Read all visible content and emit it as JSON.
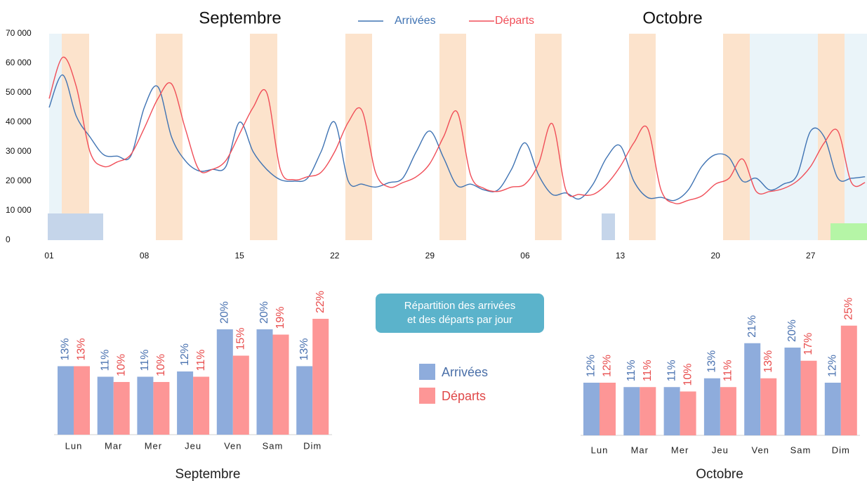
{
  "chart_data": [
    {
      "type": "line",
      "annotations": [
        "Septembre",
        "Octobre"
      ],
      "categories": [
        "01",
        null,
        null,
        null,
        null,
        null,
        null,
        "08",
        null,
        null,
        null,
        null,
        null,
        null,
        "15",
        null,
        null,
        null,
        null,
        null,
        null,
        "22",
        null,
        null,
        null,
        null,
        null,
        null,
        "29",
        null,
        null,
        null,
        null,
        null,
        null,
        "06",
        null,
        null,
        null,
        null,
        null,
        null,
        "13",
        null,
        null,
        null,
        null,
        null,
        null,
        "20",
        null,
        null,
        null,
        null,
        null,
        null,
        "27",
        null,
        null,
        null,
        null
      ],
      "series": [
        {
          "name": "Arrivées",
          "color": "#3f73b3",
          "values": [
            45000,
            56000,
            42000,
            35000,
            29000,
            28500,
            28500,
            45000,
            52000,
            35000,
            27000,
            23500,
            24000,
            25000,
            40000,
            30000,
            24000,
            20500,
            20000,
            21000,
            30000,
            40000,
            20000,
            19000,
            18000,
            19500,
            21000,
            30000,
            37000,
            28000,
            18500,
            19000,
            17000,
            17000,
            24000,
            33000,
            22000,
            15500,
            16000,
            14000,
            19000,
            28000,
            32000,
            20000,
            14500,
            14500,
            13500,
            17000,
            25000,
            29000,
            28000,
            20000,
            21000,
            17000,
            19000,
            22000,
            37000,
            35000,
            21000,
            21000,
            21500
          ]
        },
        {
          "name": "Départs",
          "color": "#f04e58",
          "values": [
            48000,
            62000,
            52000,
            30000,
            25000,
            26500,
            29000,
            38000,
            48000,
            53000,
            38000,
            24000,
            24000,
            27000,
            36000,
            45000,
            50000,
            24000,
            20500,
            21500,
            23000,
            30000,
            40000,
            44000,
            23000,
            18000,
            19500,
            21500,
            26000,
            35000,
            43500,
            22000,
            17500,
            16500,
            18000,
            19000,
            26000,
            39500,
            17000,
            15500,
            15500,
            19000,
            25000,
            33000,
            38000,
            17000,
            12500,
            13500,
            15000,
            19000,
            21000,
            27500,
            16500,
            16500,
            17500,
            20000,
            25000,
            33000,
            37000,
            19500,
            19500
          ]
        }
      ],
      "ylim": [
        0,
        70000
      ],
      "yticks": [
        0,
        {
          "value": 10000,
          "label": "10 000"
        },
        {
          "value": 20000,
          "label": "20 000"
        },
        {
          "value": 30000,
          "label": "30 000"
        },
        {
          "value": 40000,
          "label": "40 000"
        },
        {
          "value": 50000,
          "label": "50 000"
        },
        {
          "value": 60000,
          "label": "60 000"
        },
        {
          "value": 70000,
          "label": "70 000"
        }
      ],
      "grid": false,
      "legend": "top"
    },
    {
      "type": "bar",
      "title": "Septembre",
      "annotation": "Répartition des arrivées\net des départs par jour",
      "categories": [
        "Lun",
        "Mar",
        "Mer",
        "Jeu",
        "Ven",
        "Sam",
        "Dim"
      ],
      "series": [
        {
          "name": "Arrivées",
          "color": "#8eacdc",
          "values": [
            13,
            11,
            11,
            12,
            20,
            20,
            13
          ],
          "value_labels": [
            "13%",
            "11%",
            "11%",
            "12%",
            "20%",
            "20%",
            "13%"
          ]
        },
        {
          "name": "Départs",
          "color": "#fd9696",
          "values": [
            13,
            10,
            10,
            11,
            15,
            19,
            22
          ],
          "value_labels": [
            "13%",
            "10%",
            "10%",
            "11%",
            "15%",
            "19%",
            "22%"
          ]
        }
      ]
    },
    {
      "type": "bar",
      "title": "Octobre",
      "categories": [
        "Lun",
        "Mar",
        "Mer",
        "Jeu",
        "Ven",
        "Sam",
        "Dim"
      ],
      "series": [
        {
          "color": "#8eacdc",
          "values": [
            12,
            11,
            11,
            13,
            21,
            20,
            12
          ],
          "value_labels": [
            "12%",
            "11%",
            "11%",
            "13%",
            "21%",
            "20%",
            "12%"
          ]
        },
        {
          "color": "#fd9696",
          "values": [
            12,
            11,
            10,
            11,
            13,
            17,
            25
          ],
          "value_labels": [
            "12%",
            "11%",
            "10%",
            "11%",
            "13%",
            "17%",
            "25%"
          ]
        }
      ]
    }
  ]
}
